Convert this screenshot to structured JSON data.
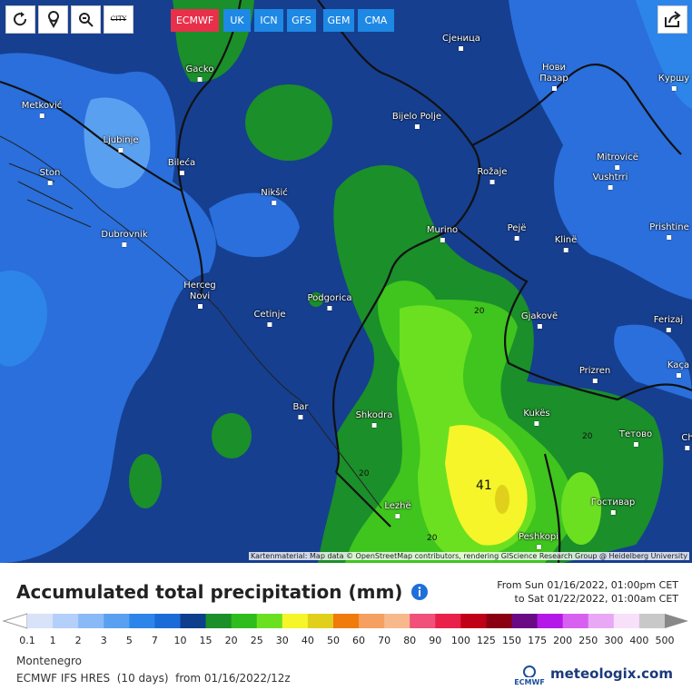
{
  "toolbar": {
    "models": [
      "ECMWF",
      "UK",
      "ICN",
      "GFS",
      "GEM",
      "CMA"
    ],
    "city_button": "CITY"
  },
  "map": {
    "cities": [
      "Сјеница",
      "Gacko",
      "Metković",
      "Bijelo Polje",
      "Нови Пазар",
      "Куршу",
      "Ljubinje",
      "Bileća",
      "Ston",
      "Rožaje",
      "Mitrovicë",
      "Vushtrri",
      "Nikšić",
      "Dubrovnik",
      "Murino",
      "Pejë",
      "Klinë",
      "Prishtine",
      "Herceg Novi",
      "Cetinje",
      "Podgorica",
      "Gjakovë",
      "Ferizaj",
      "Prizren",
      "Kaça",
      "Bar",
      "Shkodra",
      "Kukës",
      "Тетово",
      "Ch",
      "Lezhë",
      "Гостивар",
      "Peshkopi"
    ],
    "contour_labels": [
      "20",
      "20",
      "20",
      "20"
    ],
    "max_label": "41",
    "attribution": "Kartenmaterial: Map data © OpenStreetMap contributors, rendering GIScience Research Group @ Heidelberg University"
  },
  "footer": {
    "title": "Accumulated total precipitation (mm)",
    "from": "From Sun 01/16/2022, 01:00pm CET",
    "to": "to Sat 01/22/2022, 01:00am CET",
    "region": "Montenegro",
    "model_run": "ECMWF IFS HRES  (10 days)  from 01/16/2022/12z",
    "ecmwf": "ECMWF",
    "brand": "meteologix.com"
  },
  "legend": {
    "ticks": [
      0.1,
      1,
      2,
      3,
      5,
      7,
      10,
      15,
      20,
      25,
      30,
      40,
      50,
      60,
      70,
      80,
      90,
      100,
      125,
      150,
      175,
      200,
      250,
      300,
      400,
      500
    ],
    "colors": [
      "#d8e2f8",
      "#b4cffa",
      "#8ab9f7",
      "#5aa0f0",
      "#2d85ea",
      "#1a6bd8",
      "#0e3f8c",
      "#1b8f2a",
      "#2fbd1e",
      "#6be020",
      "#f5f52a",
      "#e0d01c",
      "#f07a0c",
      "#f5a060",
      "#f7b88c",
      "#f0507a",
      "#e8204a",
      "#c00016",
      "#8a0010",
      "#6a0a84",
      "#b418e8",
      "#d860f0",
      "#e8a8f5",
      "#f8e0fb",
      "#c8c8c8"
    ]
  }
}
